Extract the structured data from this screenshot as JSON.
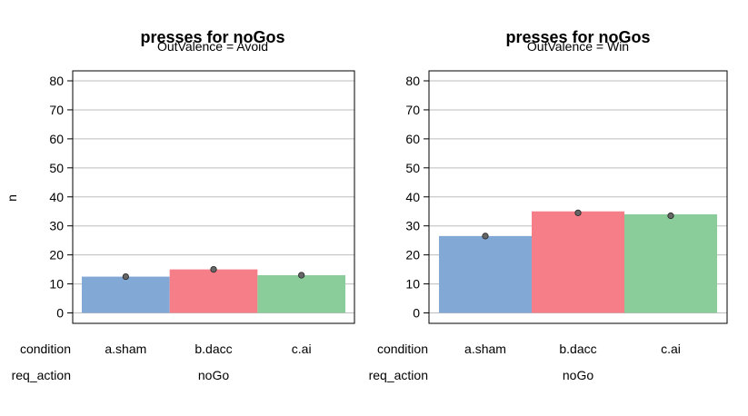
{
  "chart_data": [
    {
      "type": "bar",
      "title": "presses for noGos",
      "subtitle": "OutValence = Avoid",
      "ylabel": "n",
      "ylim": [
        0,
        80
      ],
      "yticks": [
        0,
        10,
        20,
        30,
        40,
        50,
        60,
        70,
        80
      ],
      "grid": true,
      "categories": [
        "a.sham",
        "b.dacc",
        "c.ai"
      ],
      "values": [
        12.5,
        15,
        13
      ],
      "points": [
        12.5,
        15,
        13
      ],
      "bar_colors": [
        "#82a8d6",
        "#f57e88",
        "#8acc9a"
      ],
      "factor_names": [
        "condition",
        "req_action"
      ],
      "group_label": "noGo"
    },
    {
      "type": "bar",
      "title": "presses for noGos",
      "subtitle": "OutValence = Win",
      "ylabel": "",
      "ylim": [
        0,
        80
      ],
      "yticks": [
        0,
        10,
        20,
        30,
        40,
        50,
        60,
        70,
        80
      ],
      "grid": true,
      "categories": [
        "a.sham",
        "b.dacc",
        "c.ai"
      ],
      "values": [
        26.5,
        35,
        34
      ],
      "points": [
        26.5,
        34.5,
        33.5
      ],
      "bar_colors": [
        "#82a8d6",
        "#f57e88",
        "#8acc9a"
      ],
      "factor_names": [
        "condition",
        "req_action"
      ],
      "group_label": "noGo"
    }
  ]
}
